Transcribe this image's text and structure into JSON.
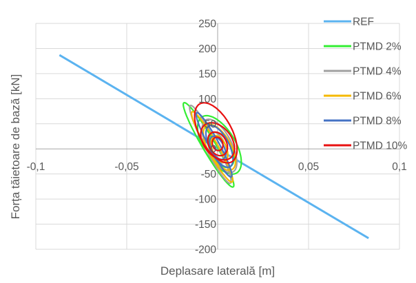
{
  "chart_data": {
    "type": "line",
    "title": "",
    "xlabel": "Deplasare laterală [m]",
    "ylabel": "Forța tăietoare de bază [kN]",
    "xlim": [
      -0.1,
      0.1
    ],
    "ylim": [
      -200,
      250
    ],
    "x_ticks": [
      -0.1,
      -0.05,
      0,
      0.05,
      0.1
    ],
    "x_tick_labels": [
      "-0,1",
      "-0,05",
      "0",
      "0,05",
      "0,1"
    ],
    "y_ticks": [
      250,
      200,
      150,
      100,
      50,
      0,
      -50,
      -100,
      -150,
      -200
    ],
    "y_tick_labels": [
      "250",
      "200",
      "150",
      "100",
      "50",
      "0",
      "-50",
      "-100",
      "-150",
      "-200"
    ],
    "grid": true,
    "legend_position": "right",
    "series": [
      {
        "name": "REF",
        "color": "#5BB3F0",
        "x": [
          -0.087,
          0.083
        ],
        "y": [
          187,
          -178
        ]
      },
      {
        "name": "PTMD 2%",
        "color": "#33EE33",
        "loops": [
          {
            "cx": -0.005,
            "cy": 8,
            "dx": 0.027,
            "dy": -168,
            "rx": 0.0033,
            "ry": 5
          },
          {
            "cx": 0.001,
            "cy": 8,
            "dx": 0.017,
            "dy": -115,
            "rx": 0.0085,
            "ry": 9
          },
          {
            "cx": 0.002,
            "cy": -2,
            "dx": 0.009,
            "dy": -68,
            "rx": 0.0055,
            "ry": 8
          }
        ]
      },
      {
        "name": "PTMD 4%",
        "color": "#A0A0A0",
        "loops": [
          {
            "cx": -0.004,
            "cy": 9,
            "dx": 0.022,
            "dy": -155,
            "rx": 0.003,
            "ry": 5
          },
          {
            "cx": 0.001,
            "cy": 6,
            "dx": 0.014,
            "dy": -105,
            "rx": 0.0065,
            "ry": 8
          },
          {
            "cx": 0.0,
            "cy": 3,
            "dx": 0.007,
            "dy": -60,
            "rx": 0.004,
            "ry": 7
          }
        ]
      },
      {
        "name": "PTMD 6%",
        "color": "#F5B800",
        "loops": [
          {
            "cx": -0.003,
            "cy": 4,
            "dx": 0.022,
            "dy": -140,
            "rx": 0.0028,
            "ry": 5
          },
          {
            "cx": 0.001,
            "cy": 3,
            "dx": 0.013,
            "dy": -90,
            "rx": 0.006,
            "ry": 8
          },
          {
            "cx": 0.001,
            "cy": 0,
            "dx": 0.006,
            "dy": -52,
            "rx": 0.0035,
            "ry": 6
          }
        ]
      },
      {
        "name": "PTMD 8%",
        "color": "#4472C4",
        "loops": [
          {
            "cx": -0.002,
            "cy": 8,
            "dx": 0.019,
            "dy": -128,
            "rx": 0.0026,
            "ry": 4
          },
          {
            "cx": 0.001,
            "cy": 5,
            "dx": 0.011,
            "dy": -82,
            "rx": 0.005,
            "ry": 7
          },
          {
            "cx": 0.0,
            "cy": 2,
            "dx": 0.006,
            "dy": -45,
            "rx": 0.0032,
            "ry": 5
          }
        ]
      },
      {
        "name": "PTMD 10%",
        "color": "#E81010",
        "loops": [
          {
            "cx": -0.001,
            "cy": 32,
            "dx": 0.016,
            "dy": -118,
            "rx": 0.0085,
            "ry": 10
          },
          {
            "cx": 0.0,
            "cy": 15,
            "dx": 0.011,
            "dy": -72,
            "rx": 0.0075,
            "ry": 9
          },
          {
            "cx": 0.0,
            "cy": 10,
            "dx": 0.006,
            "dy": -45,
            "rx": 0.0045,
            "ry": 7
          },
          {
            "cx": 0.0,
            "cy": 10,
            "dx": 0.003,
            "dy": -25,
            "rx": 0.0025,
            "ry": 5
          }
        ]
      }
    ]
  }
}
